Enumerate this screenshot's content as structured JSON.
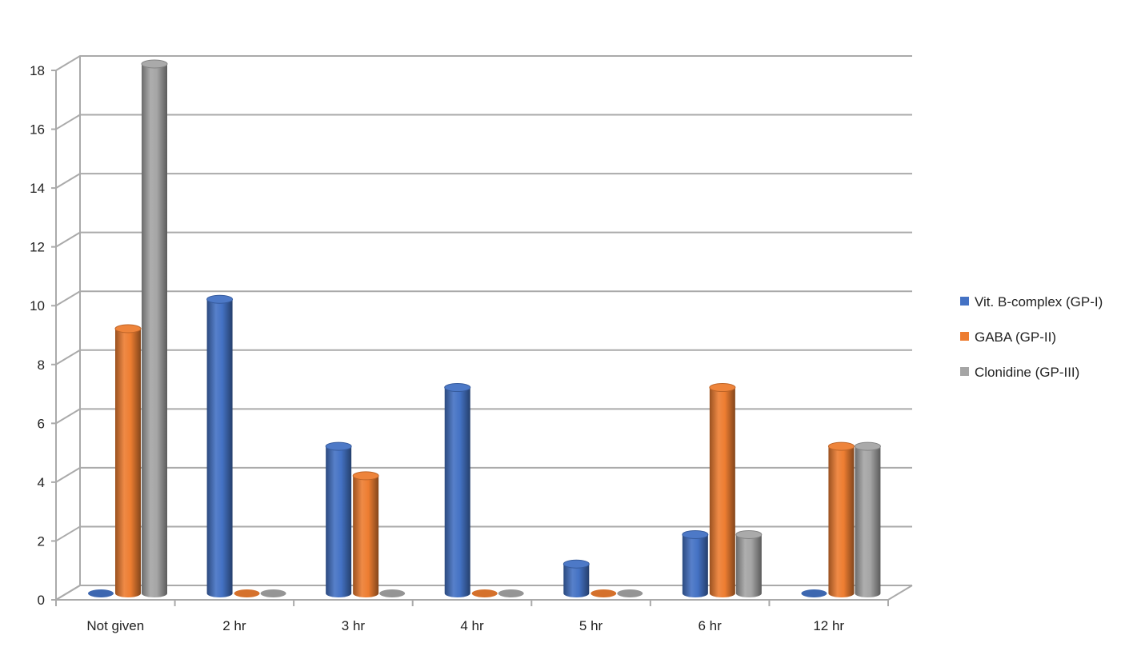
{
  "chart_data": {
    "type": "bar",
    "style": "3d-cylinder-clustered",
    "title": "",
    "xlabel": "",
    "ylabel": "",
    "categories": [
      "Not given",
      "2 hr",
      "3 hr",
      "4 hr",
      "5 hr",
      "6 hr",
      "12 hr"
    ],
    "series": [
      {
        "name": "Vit. B-complex (GP-I)",
        "color": "#4472C4",
        "values": [
          0,
          10,
          5,
          7,
          1,
          2,
          0
        ]
      },
      {
        "name": "GABA (GP-II)",
        "color": "#ED7D31",
        "values": [
          9,
          0,
          4,
          0,
          0,
          7,
          5
        ]
      },
      {
        "name": "Clonidine (GP-III)",
        "color": "#A5A5A5",
        "values": [
          18,
          0,
          0,
          0,
          0,
          2,
          5
        ]
      }
    ],
    "ylim": [
      0,
      18
    ],
    "yticks": [
      0,
      2,
      4,
      6,
      8,
      10,
      12,
      14,
      16,
      18
    ],
    "grid": true,
    "legend_position": "right"
  }
}
